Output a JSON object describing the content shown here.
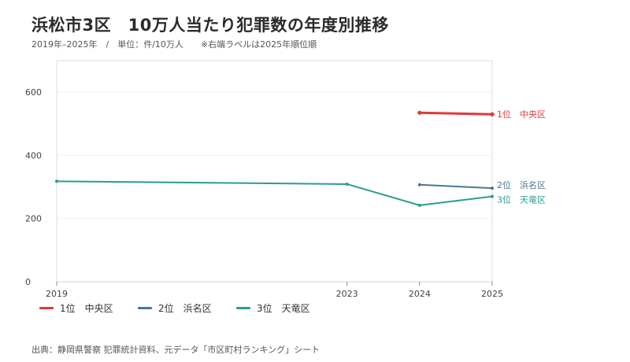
{
  "header": {
    "title": "浜松市3区　10万人当たり犯罪数の年度別推移",
    "subtitle": "2019年–2025年　/　単位：件/10万人　　※右端ラベルは2025年順位順"
  },
  "footer": {
    "source": "出典：静岡県警察 犯罪統計資料、元データ「市区町村ランキング」シート"
  },
  "chart_data": {
    "type": "line",
    "title": "浜松市3区　10万人当たり犯罪数の年度別推移",
    "subtitle": "2019年–2025年　/　単位：件/10万人　　※右端ラベルは2025年順位順",
    "x_ticks": [
      "2019",
      "2023",
      "2024",
      "2025"
    ],
    "xlim": [
      2019,
      2025
    ],
    "y_ticks": [
      "0",
      "200",
      "400",
      "600"
    ],
    "ylim": [
      0,
      700
    ],
    "grid": true,
    "legend_position": "bottom-left",
    "series": [
      {
        "name": "1位　中央区",
        "end_label": "1位　中央区",
        "color": "#e5383b",
        "points": [
          {
            "x": 2024,
            "y": 535
          },
          {
            "x": 2025,
            "y": 530
          }
        ]
      },
      {
        "name": "2位　浜名区",
        "end_label": "2位　浜名区",
        "color": "#4a7694",
        "points": [
          {
            "x": 2024,
            "y": 307
          },
          {
            "x": 2025,
            "y": 296
          }
        ]
      },
      {
        "name": "3位　天竜区",
        "end_label": "3位　天竜区",
        "color": "#2a9d8f",
        "points": [
          {
            "x": 2019,
            "y": 318
          },
          {
            "x": 2023,
            "y": 309
          },
          {
            "x": 2024,
            "y": 242
          },
          {
            "x": 2025,
            "y": 270
          }
        ]
      }
    ]
  }
}
